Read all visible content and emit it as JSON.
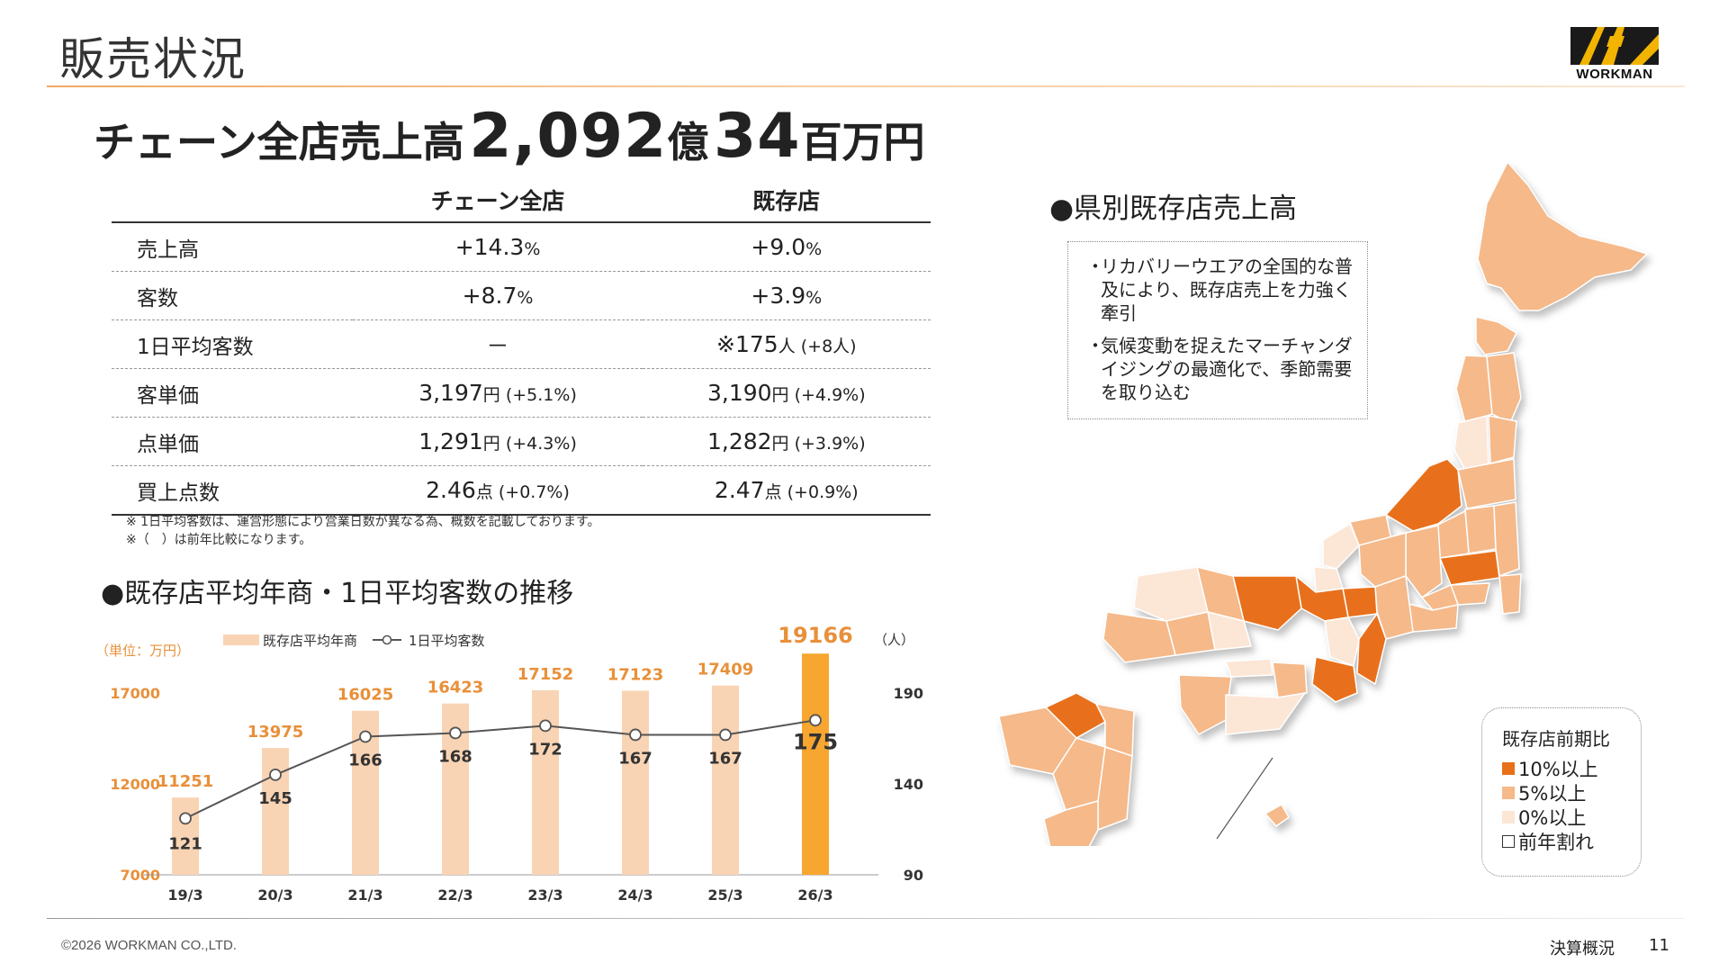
{
  "header": {
    "title": "販売状況",
    "logo_text": "WORKMAN"
  },
  "headline": {
    "label": "チェーン全店売上高",
    "value1": "2,092",
    "unit1": "億",
    "value2": "34",
    "unit2": "百万円"
  },
  "table": {
    "columns": [
      "チェーン全店",
      "既存店"
    ],
    "rows": [
      {
        "label": "売上高",
        "chain": {
          "main": "+14.3",
          "unit": "%",
          "sub": ""
        },
        "existing": {
          "main": "+9.0",
          "unit": "%",
          "sub": ""
        }
      },
      {
        "label": "客数",
        "chain": {
          "main": "+8.7",
          "unit": "%",
          "sub": ""
        },
        "existing": {
          "main": "+3.9",
          "unit": "%",
          "sub": ""
        }
      },
      {
        "label": "1日平均客数",
        "chain": {
          "main": "－",
          "unit": "",
          "sub": ""
        },
        "existing": {
          "main": "※175",
          "unit": "人",
          "sub": " (+8人)"
        }
      },
      {
        "label": "客単価",
        "chain": {
          "main": "3,197",
          "unit": "円",
          "sub": " (+5.1%)"
        },
        "existing": {
          "main": "3,190",
          "unit": "円",
          "sub": " (+4.9%)"
        }
      },
      {
        "label": "点単価",
        "chain": {
          "main": "1,291",
          "unit": "円",
          "sub": " (+4.3%)"
        },
        "existing": {
          "main": "1,282",
          "unit": "円",
          "sub": " (+3.9%)"
        }
      },
      {
        "label": "買上点数",
        "chain": {
          "main": "2.46",
          "unit": "点",
          "sub": " (+0.7%)"
        },
        "existing": {
          "main": "2.47",
          "unit": "点",
          "sub": " (+0.9%)"
        }
      }
    ],
    "notes": [
      "※ 1日平均客数は、運営形態により営業日数が異なる為、概数を記載しております。",
      "※（　）は前年比較になります。"
    ]
  },
  "chart_heading": "●既存店平均年商・1日平均客数の推移",
  "chart_data": {
    "type": "bar",
    "categories": [
      "19/3",
      "20/3",
      "21/3",
      "22/3",
      "23/3",
      "24/3",
      "25/3",
      "26/3"
    ],
    "series": [
      {
        "name": "既存店平均年商",
        "type": "bar",
        "axis": "left",
        "values": [
          11251,
          13975,
          16025,
          16423,
          17152,
          17123,
          17409,
          19166
        ]
      },
      {
        "name": "1日平均客数",
        "type": "line",
        "axis": "right",
        "values": [
          121,
          145,
          166,
          168,
          172,
          167,
          167,
          175
        ]
      }
    ],
    "left_axis": {
      "label": "（単位：万円）",
      "ticks": [
        7000,
        12000,
        17000
      ],
      "range": [
        7000,
        17000
      ]
    },
    "right_axis": {
      "label": "（人）",
      "ticks": [
        90,
        140,
        190
      ],
      "range": [
        90,
        190
      ]
    },
    "legend_placement": "top",
    "bar_color": "#f9d4b4",
    "highlight_color": "#f7a630",
    "label_color": "#e8903a",
    "grid": false
  },
  "map": {
    "heading": "●県別既存店売上高",
    "bullets": [
      "リカバリーウエアの全国的な普及により、既存店売上を力強く牽引",
      "気候変動を捉えたマーチャンダイジングの最適化で、季節需要を取り込む"
    ],
    "bullet_mark": "・",
    "legend": {
      "title": "既存店前期比",
      "items": [
        {
          "label": "10%以上",
          "color": "#e8701a"
        },
        {
          "label": "5%以上",
          "color": "#f5b98a"
        },
        {
          "label": "0%以上",
          "color": "#fce6d6"
        },
        {
          "label": "前年割れ",
          "color": "#ffffff"
        }
      ]
    }
  },
  "footer": {
    "copyright": "©2026 WORKMAN CO.,LTD.",
    "section": "決算概況",
    "page": "11"
  }
}
